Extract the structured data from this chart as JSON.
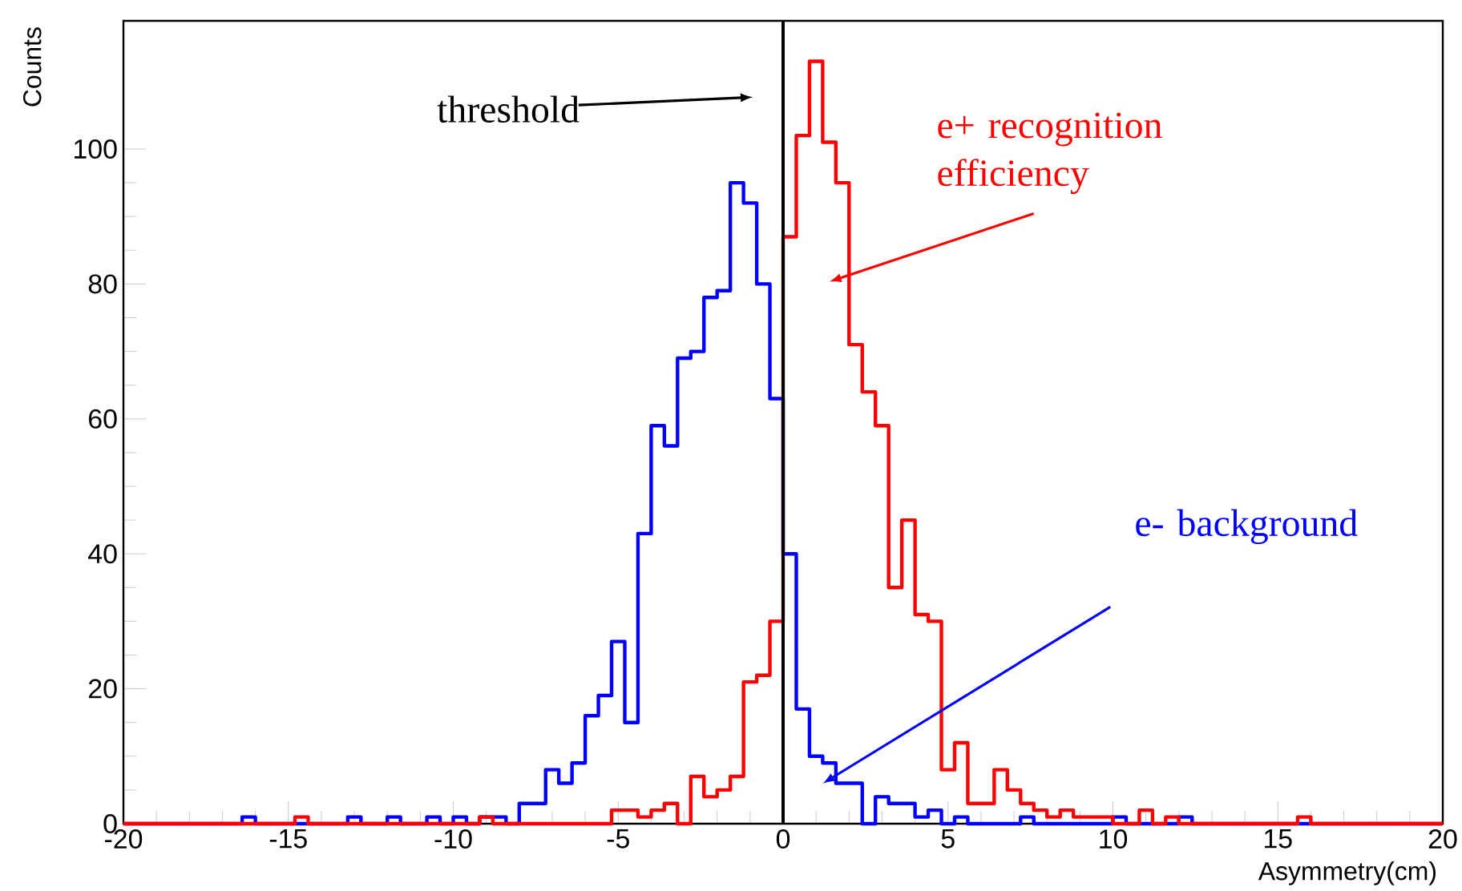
{
  "chart_data": {
    "type": "histogram",
    "xlabel": "Asymmetry(cm)",
    "ylabel": "Counts",
    "bins": [
      -20,
      -19.6,
      -19.2,
      -18.8,
      -18.4,
      -18,
      -17.6,
      -17.2,
      -16.8,
      -16.4,
      -16,
      -15.6,
      -15.2,
      -14.8,
      -14.4,
      -14,
      -13.6,
      -13.2,
      -12.8,
      -12.4,
      -12,
      -11.6,
      -11.2,
      -10.8,
      -10.4,
      -10,
      -9.6,
      -9.2,
      -8.8,
      -8.4,
      -8,
      -7.6,
      -7.2,
      -6.8,
      -6.4,
      -6,
      -5.6,
      -5.2,
      -4.8,
      -4.4,
      -4,
      -3.6,
      -3.2,
      -2.8,
      -2.4,
      -2,
      -1.6,
      -1.2,
      -0.8,
      -0.4,
      0,
      0.4,
      0.8,
      1.2,
      1.6,
      2,
      2.4,
      2.8,
      3.2,
      3.6,
      4,
      4.4,
      4.8,
      5.2,
      5.6,
      6,
      6.4,
      6.8,
      7.2,
      7.6,
      8,
      8.4,
      8.8,
      9.2,
      9.6,
      10,
      10.4,
      10.8,
      11.2,
      11.6,
      12,
      12.4,
      12.8,
      13.2,
      13.6,
      14,
      14.4,
      14.8,
      15.2,
      15.6,
      16,
      16.4,
      16.8,
      17.2,
      17.6,
      18,
      18.4,
      18.8,
      19.2,
      19.6,
      20
    ],
    "series": [
      {
        "name": "e- background",
        "color": "#0000ff",
        "values": [
          0,
          0,
          0,
          0,
          0,
          0,
          0,
          0,
          0,
          1,
          0,
          0,
          0,
          0,
          0,
          0,
          0,
          1,
          0,
          0,
          1,
          0,
          0,
          1,
          0,
          1,
          0,
          1,
          1,
          0,
          3,
          3,
          8,
          6,
          9,
          16,
          19,
          27,
          15,
          43,
          59,
          56,
          69,
          70,
          78,
          79,
          95,
          92,
          80,
          63,
          40,
          17,
          10,
          9,
          6,
          6,
          0,
          4,
          3,
          3,
          1,
          2,
          0,
          1,
          0,
          0,
          0,
          0,
          1,
          0,
          0,
          0,
          0,
          0,
          0,
          1,
          0,
          0,
          0,
          0,
          1,
          0,
          0,
          0,
          0,
          0,
          0,
          0,
          0,
          0,
          0,
          0,
          0,
          0,
          0,
          0,
          0,
          0,
          0,
          0
        ]
      },
      {
        "name": "e+  recognition efficiency",
        "color": "#ff0000",
        "values": [
          0,
          0,
          0,
          0,
          0,
          0,
          0,
          0,
          0,
          0,
          0,
          0,
          0,
          1,
          0,
          0,
          0,
          0,
          0,
          0,
          0,
          0,
          0,
          0,
          0,
          0,
          0,
          1,
          0,
          0,
          0,
          0,
          0,
          0,
          0,
          0,
          0,
          2,
          2,
          1,
          2,
          3,
          0,
          7,
          4,
          5,
          7,
          21,
          22,
          30,
          87,
          102,
          113,
          101,
          95,
          71,
          64,
          59,
          35,
          45,
          31,
          30,
          8,
          12,
          3,
          3,
          8,
          5,
          3,
          2,
          1,
          2,
          1,
          1,
          1,
          0,
          0,
          2,
          0,
          1,
          0,
          0,
          0,
          0,
          0,
          0,
          0,
          0,
          0,
          1,
          0,
          0,
          0,
          0,
          0,
          0,
          0,
          0,
          0,
          0
        ]
      }
    ],
    "xlim": [
      -20,
      20
    ],
    "ylim": [
      0,
      119
    ],
    "xticks": [
      -20,
      -15,
      -10,
      -5,
      0,
      5,
      10,
      15,
      20
    ],
    "yticks": [
      0,
      20,
      40,
      60,
      80,
      100
    ],
    "ref_lines": [
      {
        "axis": "x",
        "value": 0,
        "label": "threshold",
        "color": "#000000"
      }
    ]
  }
}
